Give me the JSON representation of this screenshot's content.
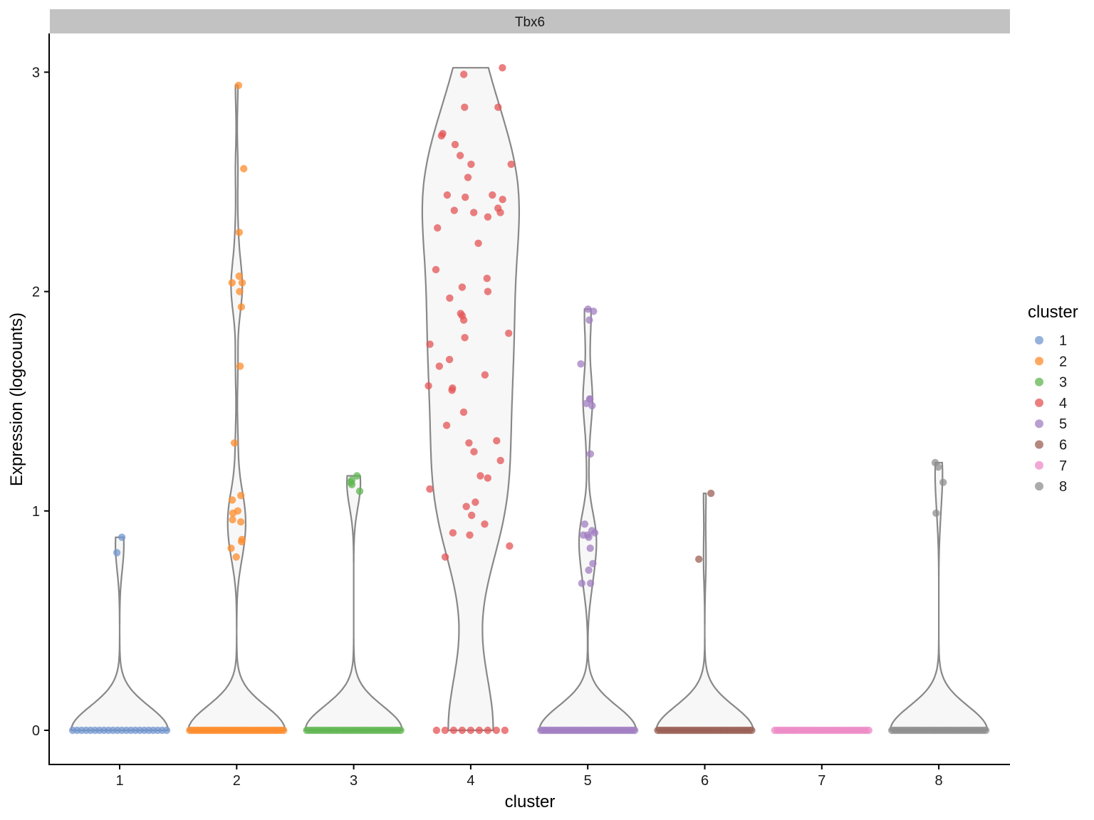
{
  "chart_data": {
    "type": "violin",
    "facet_title": "Tbx6",
    "xlabel": "cluster",
    "ylabel": "Expression (logcounts)",
    "ylim": [
      -0.15,
      3.18
    ],
    "y_ticks": [
      0,
      1,
      2,
      3
    ],
    "categories": [
      "1",
      "2",
      "3",
      "4",
      "5",
      "6",
      "7",
      "8"
    ],
    "legend": {
      "title": "cluster",
      "position": "right",
      "entries": [
        "1",
        "2",
        "3",
        "4",
        "5",
        "6",
        "7",
        "8"
      ]
    },
    "colors": {
      "1": "#7297d0",
      "2": "#fe8c2c",
      "3": "#5fb650",
      "4": "#e45455",
      "5": "#a27fc2",
      "6": "#9b6055",
      "7": "#ec8ac6",
      "8": "#8f8f8f",
      "violin_outline": "#888888",
      "violin_fill": "#f7f7f7",
      "strip": "#c2c2c2"
    },
    "series": [
      {
        "name": "1",
        "max": 0.88,
        "zero_count": 22,
        "points": [
          0.88,
          0.81
        ]
      },
      {
        "name": "2",
        "max": 2.94,
        "zero_count": 40,
        "points": [
          2.94,
          2.56,
          2.27,
          2.07,
          2.04,
          2.04,
          2.0,
          1.93,
          1.66,
          1.31,
          1.07,
          1.05,
          1.0,
          0.99,
          0.96,
          0.95,
          0.87,
          0.86,
          0.83,
          0.79
        ]
      },
      {
        "name": "3",
        "max": 1.16,
        "zero_count": 35,
        "points": [
          1.16,
          1.14,
          1.13,
          1.12,
          1.09
        ]
      },
      {
        "name": "4",
        "max": 3.02,
        "zero_count": 9,
        "points": [
          3.02,
          2.99,
          2.84,
          2.84,
          2.72,
          2.71,
          2.67,
          2.62,
          2.58,
          2.58,
          2.52,
          2.44,
          2.44,
          2.43,
          2.42,
          2.38,
          2.37,
          2.36,
          2.36,
          2.34,
          2.29,
          2.22,
          2.1,
          2.06,
          2.02,
          2.0,
          1.97,
          1.9,
          1.89,
          1.87,
          1.81,
          1.79,
          1.76,
          1.69,
          1.66,
          1.62,
          1.57,
          1.56,
          1.55,
          1.45,
          1.39,
          1.32,
          1.31,
          1.27,
          1.23,
          1.16,
          1.15,
          1.1,
          1.04,
          1.02,
          0.98,
          0.94,
          0.9,
          0.89,
          0.84,
          0.79
        ]
      },
      {
        "name": "5",
        "max": 1.92,
        "zero_count": 45,
        "points": [
          1.92,
          1.91,
          1.87,
          1.67,
          1.51,
          1.51,
          1.49,
          1.48,
          1.26,
          0.94,
          0.91,
          0.9,
          0.89,
          0.89,
          0.88,
          0.83,
          0.76,
          0.73,
          0.67,
          0.67
        ]
      },
      {
        "name": "6",
        "max": 1.08,
        "zero_count": 40,
        "points": [
          1.08,
          0.78
        ]
      },
      {
        "name": "7",
        "max": 0.0,
        "zero_count": 38,
        "points": []
      },
      {
        "name": "8",
        "max": 1.22,
        "zero_count": 40,
        "points": [
          1.22,
          1.2,
          1.13,
          0.99
        ]
      }
    ]
  }
}
